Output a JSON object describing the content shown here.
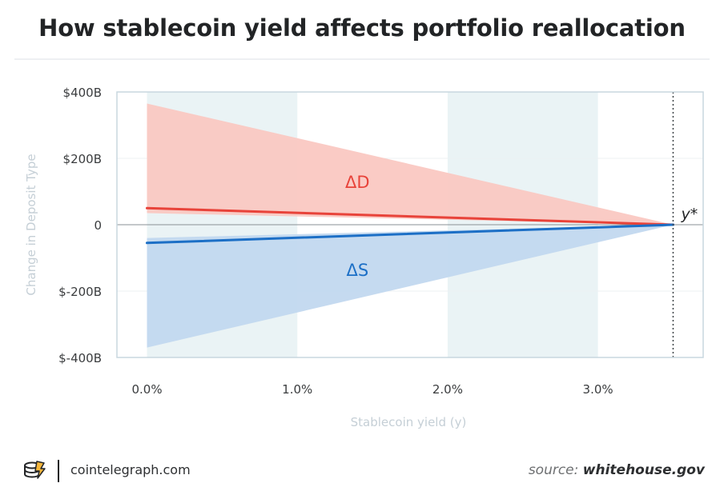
{
  "title": "How stablecoin yield affects portfolio reallocation",
  "footer": {
    "site": "cointelegraph.com",
    "source_prefix": "source:",
    "source_domain": "whitehouse.gov"
  },
  "colors": {
    "deposits_line": "#e8433a",
    "deposits_band": "#fac8c2",
    "stablecoin_line": "#1c6fc6",
    "stablecoin_band": "#c2d8ef",
    "shade_band": "#eaf3f5",
    "axis_label": "#c5cfd6",
    "tick_label": "#3a3c3e",
    "logo": "#f4b63b"
  },
  "chart_data": {
    "type": "area",
    "xlabel": "Stablecoin yield (y)",
    "ylabel": "Change in Deposit Type",
    "xlim": [
      -0.2,
      3.7
    ],
    "ylim": [
      -400,
      400
    ],
    "x_ticks": [
      0,
      1,
      2,
      3
    ],
    "x_tick_labels": [
      "0.0%",
      "1.0%",
      "2.0%",
      "3.0%"
    ],
    "y_ticks": [
      400,
      200,
      0,
      -200,
      -400
    ],
    "y_tick_labels": [
      "$400B",
      "$200B",
      "0",
      "$-200B",
      "$-400B"
    ],
    "shaded_x_ranges": [
      [
        0,
        1
      ],
      [
        2,
        3
      ]
    ],
    "grid": true,
    "series": [
      {
        "name": "ΔD",
        "x": [
          0,
          3.5
        ],
        "values": [
          50,
          0
        ],
        "band_upper": [
          365,
          0
        ],
        "band_lower": [
          35,
          0
        ]
      },
      {
        "name": "ΔS",
        "x": [
          0,
          3.5
        ],
        "values": [
          -55,
          0
        ],
        "band_upper": [
          -40,
          0
        ],
        "band_lower": [
          -370,
          0
        ]
      }
    ],
    "annotations": [
      {
        "text": "y*",
        "x": 3.5,
        "y": 0
      }
    ]
  }
}
